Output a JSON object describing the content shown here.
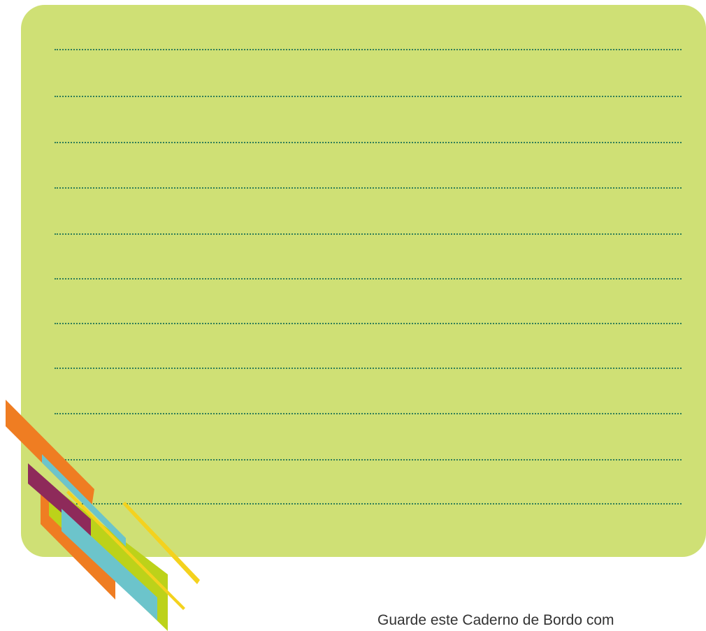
{
  "page": {
    "background_color": "#ffffff",
    "card_color": "#cfe075",
    "line_color": "#2f7d58",
    "ruled_line_count": 11
  },
  "decoration": {
    "stripe_colors": [
      "#ef7d22",
      "#8e2a5a",
      "#6cc4cb",
      "#bcd21a",
      "#f4d21e"
    ]
  },
  "footer": {
    "text": "Guarde este Caderno de Bordo com"
  }
}
